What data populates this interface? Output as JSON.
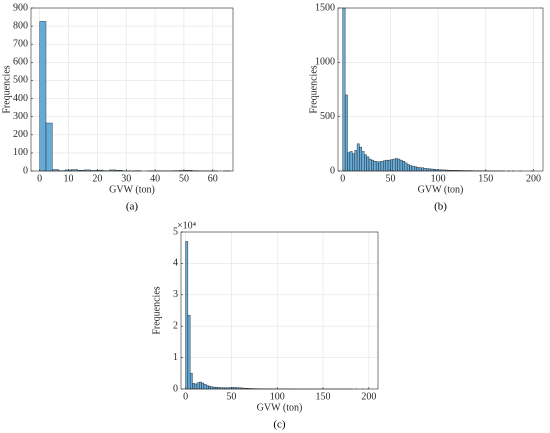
{
  "chart_data": [
    {
      "type": "histogram",
      "caption": "(a)",
      "x_label": "GVW (ton)",
      "y_label": "Frequencies",
      "color": "#66aad7",
      "edge_color": "#1a1a1a",
      "grid": true,
      "bins": [
        0,
        2.2,
        4.4,
        6.6,
        8.8,
        11,
        13.2,
        15.4,
        17.6,
        19.8,
        22,
        24.2,
        26.4,
        28.6,
        30.8,
        33,
        35.2,
        37.4,
        39.6,
        41.8,
        44,
        46.2,
        48.4,
        50.6,
        52.8,
        55,
        57.2,
        59.4,
        61.6,
        63.8,
        66
      ],
      "values": [
        826,
        265,
        8,
        2,
        6,
        8,
        4,
        6,
        3,
        5,
        2,
        6,
        4,
        1,
        1,
        2,
        0,
        1,
        1,
        1,
        1,
        2,
        3,
        4,
        2,
        1,
        1,
        1,
        0,
        1
      ],
      "xlim": [
        -3,
        67
      ],
      "xticks": [
        0,
        10,
        20,
        30,
        40,
        50,
        60
      ],
      "ylim": [
        0,
        900
      ],
      "yticks": [
        0,
        100,
        200,
        300,
        400,
        500,
        600,
        700,
        800,
        900
      ]
    },
    {
      "type": "histogram",
      "caption": "(b)",
      "x_label": "GVW (ton)",
      "y_label": "Frequencies",
      "color": "#66aad7",
      "edge_color": "#1a1a1a",
      "grid": true,
      "bins": [
        0,
        2.5,
        5,
        7.5,
        10,
        12.5,
        15,
        17.5,
        20,
        22.5,
        25,
        27.5,
        30,
        32.5,
        35,
        37.5,
        40,
        42.5,
        45,
        47.5,
        50,
        52.5,
        55,
        57.5,
        60,
        62.5,
        65,
        67.5,
        70,
        72.5,
        75,
        77.5,
        80,
        82.5,
        85,
        87.5,
        90,
        92.5,
        95,
        97.5,
        100,
        102.5,
        105,
        107.5,
        110,
        112.5,
        115,
        117.5,
        120,
        122.5,
        125,
        127.5,
        130,
        132.5,
        135,
        137.5,
        140,
        142.5,
        145,
        147.5,
        150,
        152.5,
        155,
        157.5,
        160,
        162.5,
        165,
        167.5,
        170,
        172.5,
        175,
        177.5,
        180,
        182.5,
        185,
        187.5,
        190,
        192.5,
        195,
        197.5,
        200
      ],
      "values": [
        1500,
        700,
        170,
        180,
        160,
        190,
        250,
        220,
        180,
        150,
        130,
        110,
        100,
        90,
        85,
        85,
        90,
        95,
        100,
        100,
        105,
        110,
        115,
        110,
        100,
        90,
        75,
        60,
        50,
        45,
        40,
        35,
        30,
        30,
        25,
        22,
        20,
        18,
        16,
        14,
        12,
        11,
        10,
        9,
        8,
        7,
        7,
        6,
        6,
        5,
        5,
        4,
        4,
        4,
        3,
        3,
        3,
        2,
        2,
        2,
        2,
        1,
        1,
        1,
        1,
        1,
        1,
        1,
        0,
        1,
        0,
        1,
        0,
        0,
        1,
        0,
        0,
        0,
        0,
        1
      ],
      "xlim": [
        -5,
        210
      ],
      "xticks": [
        0,
        50,
        100,
        150,
        200
      ],
      "ylim": [
        0,
        1500
      ],
      "yticks": [
        0,
        500,
        1000,
        1500
      ]
    },
    {
      "type": "histogram",
      "caption": "(c)",
      "x_label": "GVW (ton)",
      "y_label": "Frequencies",
      "y_exponent_label": "×10⁴",
      "color": "#66aad7",
      "edge_color": "#1a1a1a",
      "grid": true,
      "bins": [
        0,
        2.5,
        5,
        7.5,
        10,
        12.5,
        15,
        17.5,
        20,
        22.5,
        25,
        27.5,
        30,
        32.5,
        35,
        37.5,
        40,
        42.5,
        45,
        47.5,
        50,
        52.5,
        55,
        57.5,
        60,
        62.5,
        65,
        67.5,
        70,
        72.5,
        75,
        77.5,
        80,
        82.5,
        85,
        87.5,
        90,
        92.5,
        95,
        97.5,
        100,
        102.5,
        105,
        107.5,
        110,
        112.5,
        115,
        117.5,
        120,
        122.5,
        125,
        127.5,
        130,
        132.5,
        135,
        137.5,
        140,
        142.5,
        145,
        147.5,
        150,
        152.5,
        155,
        157.5,
        160,
        162.5,
        165,
        167.5,
        170,
        172.5,
        175,
        177.5,
        180,
        182.5,
        185,
        187.5,
        190,
        192.5,
        195,
        197.5,
        200
      ],
      "values": [
        47000,
        23500,
        5000,
        1800,
        1600,
        2000,
        2200,
        1900,
        1500,
        1100,
        900,
        700,
        600,
        550,
        500,
        450,
        420,
        400,
        420,
        450,
        480,
        500,
        450,
        400,
        350,
        300,
        250,
        200,
        170,
        150,
        130,
        110,
        100,
        90,
        80,
        70,
        60,
        55,
        50,
        45,
        40,
        35,
        30,
        28,
        25,
        22,
        20,
        18,
        16,
        14,
        12,
        10,
        9,
        8,
        7,
        6,
        5,
        5,
        4,
        4,
        3,
        3,
        3,
        2,
        2,
        2,
        2,
        1,
        1,
        1,
        1,
        1,
        1,
        0,
        1,
        0,
        0,
        1,
        0,
        1
      ],
      "xlim": [
        -5,
        210
      ],
      "xticks": [
        0,
        50,
        100,
        150,
        200
      ],
      "ylim": [
        0,
        50000
      ],
      "yticks": [
        0,
        {
          "value": 10000,
          "label": "1"
        },
        {
          "value": 20000,
          "label": "2"
        },
        {
          "value": 30000,
          "label": "3"
        },
        {
          "value": 40000,
          "label": "4"
        },
        {
          "value": 50000,
          "label": "5"
        }
      ]
    }
  ]
}
